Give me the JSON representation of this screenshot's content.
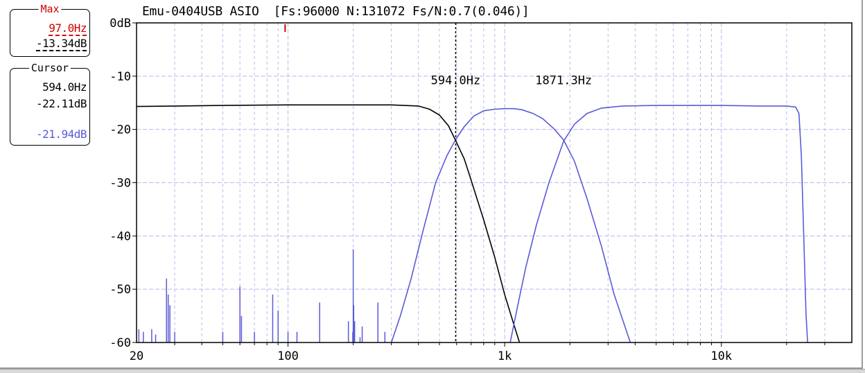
{
  "max_panel": {
    "title": "Max",
    "frequency": "97.0Hz",
    "level": "-13.34dB"
  },
  "cursor_panel": {
    "title": "Cursor",
    "frequency": "594.0Hz",
    "level_1": "-22.11dB",
    "level_2": "-21.94dB"
  },
  "header": {
    "device": "Emu-0404USB ASIO",
    "params": "[Fs:96000 N:131072 Fs/N:0.7(0.046)]"
  },
  "colors": {
    "grid": "#b8b8ee",
    "series_black": "#000000",
    "series_blue": "#5a5ad8",
    "max_marker": "#d00000"
  },
  "chart_data": {
    "type": "line",
    "x_scale": "log",
    "xlim": [
      20,
      40000
    ],
    "ylim": [
      -60,
      0
    ],
    "x_ticks": [
      {
        "value": 20,
        "label": "20"
      },
      {
        "value": 100,
        "label": "100"
      },
      {
        "value": 1000,
        "label": "1k"
      },
      {
        "value": 10000,
        "label": "10k"
      }
    ],
    "y_ticks": [
      {
        "value": 0,
        "label": "0dB"
      },
      {
        "value": -10,
        "label": "-10"
      },
      {
        "value": -20,
        "label": "-20"
      },
      {
        "value": -30,
        "label": "-30"
      },
      {
        "value": -40,
        "label": "-40"
      },
      {
        "value": -50,
        "label": "-50"
      },
      {
        "value": -60,
        "label": "-60"
      }
    ],
    "grid": true,
    "cursor": {
      "x": 594.0,
      "label": "594.0Hz"
    },
    "annotations": [
      {
        "x": 1871.3,
        "y": -11.5,
        "text": "1871.3Hz"
      }
    ],
    "max_marker": {
      "x": 97.0
    },
    "series": [
      {
        "color": "#000000",
        "points": [
          [
            20,
            -15.7
          ],
          [
            50,
            -15.5
          ],
          [
            100,
            -15.4
          ],
          [
            200,
            -15.4
          ],
          [
            300,
            -15.4
          ],
          [
            400,
            -15.6
          ],
          [
            450,
            -16.2
          ],
          [
            500,
            -17.3
          ],
          [
            550,
            -19.3
          ],
          [
            594,
            -22.1
          ],
          [
            650,
            -25.5
          ],
          [
            700,
            -29.5
          ],
          [
            800,
            -37
          ],
          [
            900,
            -44
          ],
          [
            1000,
            -51
          ],
          [
            1100,
            -56.5
          ],
          [
            1170,
            -60
          ]
        ]
      },
      {
        "color": "#5a5ad8",
        "points": [
          [
            300,
            -60
          ],
          [
            330,
            -55
          ],
          [
            370,
            -48
          ],
          [
            420,
            -39
          ],
          [
            480,
            -30
          ],
          [
            540,
            -25
          ],
          [
            594,
            -21.9
          ],
          [
            650,
            -19.5
          ],
          [
            720,
            -17.5
          ],
          [
            800,
            -16.5
          ],
          [
            900,
            -16.2
          ],
          [
            1000,
            -16.1
          ],
          [
            1100,
            -16.1
          ],
          [
            1200,
            -16.3
          ],
          [
            1350,
            -17
          ],
          [
            1500,
            -18
          ],
          [
            1700,
            -20
          ],
          [
            1871,
            -22
          ],
          [
            2100,
            -26
          ],
          [
            2400,
            -33
          ],
          [
            2800,
            -42
          ],
          [
            3200,
            -51
          ],
          [
            3800,
            -60
          ]
        ]
      },
      {
        "color": "#5a5ad8",
        "points": [
          [
            1060,
            -60
          ],
          [
            1150,
            -53
          ],
          [
            1250,
            -46
          ],
          [
            1400,
            -38
          ],
          [
            1600,
            -30
          ],
          [
            1871,
            -22.2
          ],
          [
            2100,
            -19
          ],
          [
            2400,
            -17
          ],
          [
            2800,
            -16
          ],
          [
            3500,
            -15.6
          ],
          [
            5000,
            -15.5
          ],
          [
            10000,
            -15.5
          ],
          [
            15000,
            -15.6
          ],
          [
            20000,
            -15.6
          ],
          [
            22000,
            -15.8
          ],
          [
            22800,
            -17
          ],
          [
            23400,
            -25
          ],
          [
            24000,
            -40
          ],
          [
            24600,
            -55
          ],
          [
            25000,
            -60
          ]
        ]
      },
      {
        "color": "#5a5ad8",
        "style": "spikes",
        "points": [
          [
            20.5,
            -57.5
          ],
          [
            21.5,
            -58
          ],
          [
            23.5,
            -57.5
          ],
          [
            24.5,
            -58.5
          ],
          [
            27.5,
            -48
          ],
          [
            28,
            -51
          ],
          [
            28.5,
            -53
          ],
          [
            30,
            -58
          ],
          [
            50,
            -58
          ],
          [
            60,
            -49.5
          ],
          [
            61,
            -55
          ],
          [
            70,
            -58
          ],
          [
            85,
            -51
          ],
          [
            90,
            -54
          ],
          [
            100,
            -58
          ],
          [
            110,
            -58
          ],
          [
            140,
            -52.5
          ],
          [
            190,
            -56
          ],
          [
            199,
            -58
          ],
          [
            200,
            -42.5
          ],
          [
            201,
            -53
          ],
          [
            203,
            -56
          ],
          [
            215,
            -59
          ],
          [
            220,
            -57
          ],
          [
            260,
            -52.5
          ],
          [
            280,
            -58
          ]
        ]
      }
    ]
  }
}
